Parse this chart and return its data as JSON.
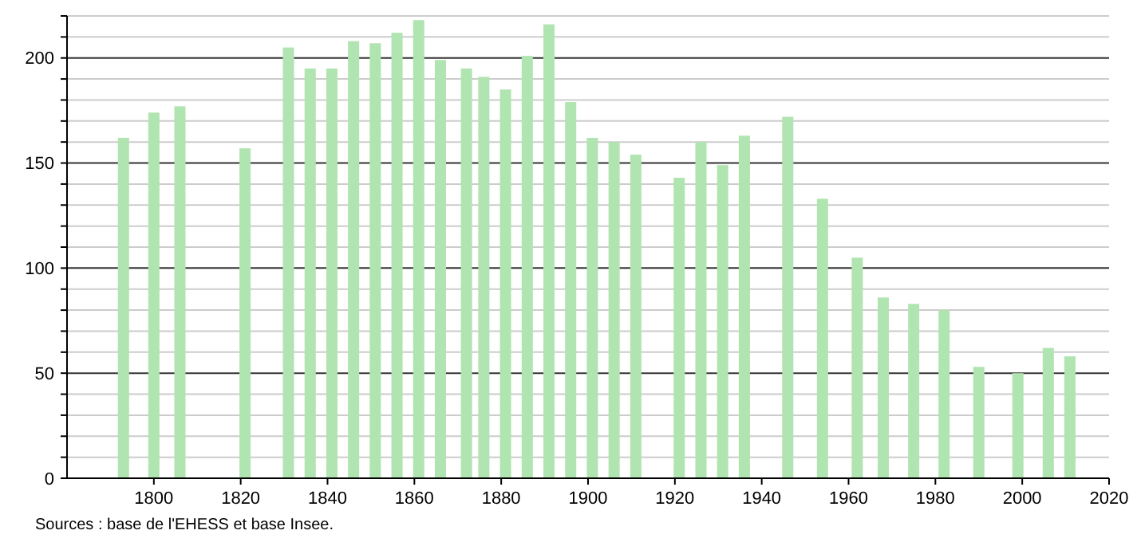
{
  "chart_data": {
    "type": "bar",
    "x": [
      1793,
      1800,
      1806,
      1821,
      1831,
      1836,
      1841,
      1846,
      1851,
      1856,
      1861,
      1866,
      1872,
      1876,
      1881,
      1886,
      1891,
      1896,
      1901,
      1906,
      1911,
      1921,
      1926,
      1931,
      1936,
      1946,
      1954,
      1962,
      1968,
      1975,
      1982,
      1990,
      1999,
      2006,
      2011
    ],
    "values": [
      162,
      174,
      177,
      157,
      205,
      195,
      195,
      208,
      207,
      212,
      218,
      199,
      195,
      191,
      185,
      201,
      216,
      179,
      162,
      160,
      154,
      143,
      160,
      149,
      163,
      172,
      133,
      105,
      86,
      83,
      80,
      53,
      50,
      62,
      58
    ],
    "color": "#b0e4b0",
    "xlim": [
      1780,
      2020
    ],
    "xticks": [
      1800,
      1820,
      1840,
      1860,
      1880,
      1900,
      1920,
      1940,
      1960,
      1980,
      2000,
      2020
    ],
    "ylim": [
      0,
      220
    ],
    "yticks": [
      0,
      {
        "value": 10,
        "label": null
      },
      {
        "value": 20,
        "label": null
      },
      {
        "value": 30,
        "label": null
      },
      {
        "value": 40,
        "label": null
      },
      50,
      {
        "value": 60,
        "label": null
      },
      {
        "value": 70,
        "label": null
      },
      {
        "value": 80,
        "label": null
      },
      {
        "value": 90,
        "label": null
      },
      100,
      {
        "value": 110,
        "label": null
      },
      {
        "value": 120,
        "label": null
      },
      {
        "value": 130,
        "label": null
      },
      {
        "value": 140,
        "label": null
      },
      150,
      {
        "value": 160,
        "label": null
      },
      {
        "value": 170,
        "label": null
      },
      {
        "value": 180,
        "label": null
      },
      {
        "value": 190,
        "label": null
      },
      200,
      {
        "value": 210,
        "label": null
      },
      {
        "value": 220,
        "label": null
      }
    ],
    "grid": "y",
    "annotations": [
      "Sources : base de l'EHESS et base Insee."
    ]
  }
}
